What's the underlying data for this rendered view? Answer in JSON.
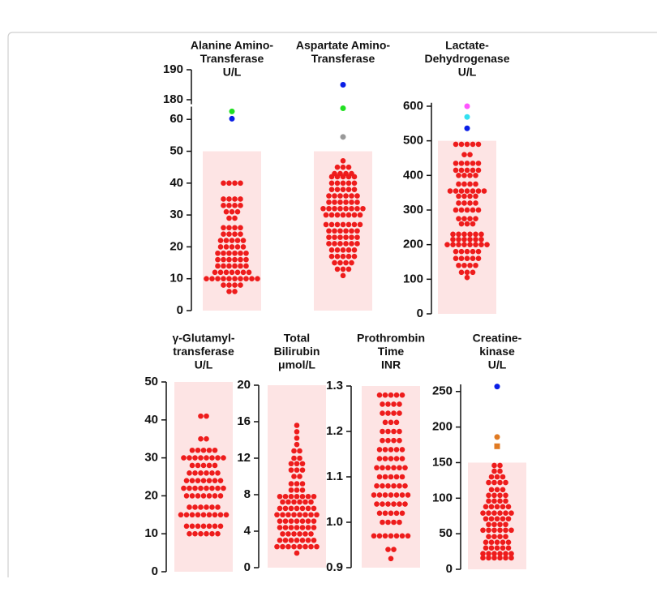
{
  "chart_data": [
    {
      "type": "swarm",
      "ylim": [
        0,
        64
      ],
      "yticks": [
        0,
        10,
        20,
        30,
        40,
        50,
        60
      ],
      "ylim_upper": [
        178.5,
        190
      ],
      "yticks_upper": [
        180,
        190
      ],
      "groups": [
        {
          "title": [
            "Alanine Amino-",
            "Transferase",
            "U/L"
          ],
          "color": "#ee1c1c",
          "reference_range": [
            0,
            50
          ],
          "values": [
            6,
            6,
            8,
            8,
            8,
            8,
            10,
            10,
            10,
            10,
            10,
            10,
            10,
            10,
            10,
            10,
            12,
            12,
            12,
            12,
            12,
            12,
            12,
            14,
            14,
            14,
            14,
            14,
            14,
            16,
            16,
            16,
            16,
            16,
            16,
            18,
            18,
            18,
            18,
            18,
            18,
            20,
            20,
            20,
            20,
            20,
            22,
            22,
            22,
            22,
            22,
            24,
            24,
            24,
            24,
            26,
            26,
            26,
            26,
            29,
            29,
            31,
            31,
            31,
            33,
            33,
            33,
            33,
            35,
            35,
            35,
            35,
            40,
            40,
            40,
            40
          ],
          "outliers": [
            {
              "value": 62.5,
              "color": "#22e022",
              "marker": "circle"
            },
            {
              "value": 60.2,
              "color": "#0a1ee6",
              "marker": "circle"
            }
          ]
        },
        {
          "title": [
            "Aspartate Amino-",
            "Transferase"
          ],
          "color": "#ee1c1c",
          "reference_range": [
            0,
            50
          ],
          "values": [
            11,
            13,
            13,
            13,
            15,
            15,
            15,
            15,
            17,
            17,
            17,
            17,
            17,
            19,
            19,
            19,
            19,
            19,
            21,
            21,
            21,
            21,
            21,
            21,
            23,
            23,
            23,
            23,
            23,
            23,
            25,
            25,
            25,
            25,
            25,
            25,
            27,
            27,
            27,
            27,
            27,
            27,
            27,
            30,
            30,
            30,
            30,
            30,
            30,
            30,
            32,
            32,
            32,
            32,
            32,
            32,
            32,
            32,
            34,
            34,
            34,
            34,
            34,
            34,
            36,
            36,
            36,
            36,
            36,
            36,
            38,
            38,
            38,
            38,
            38,
            40,
            40,
            40,
            40,
            40,
            42,
            42,
            42,
            42,
            42,
            43,
            43,
            43,
            43,
            45,
            45,
            45,
            47
          ],
          "outliers": [
            {
              "value": 185,
              "color": "#0a1ee6",
              "marker": "circle"
            },
            {
              "value": 63.5,
              "color": "#22e022",
              "marker": "circle"
            },
            {
              "value": 54.5,
              "color": "#999999",
              "marker": "circle"
            }
          ]
        }
      ]
    },
    {
      "type": "swarm",
      "ylim": [
        0,
        610
      ],
      "yticks": [
        0,
        100,
        200,
        300,
        400,
        500,
        600
      ],
      "groups": [
        {
          "title": [
            "Lactate-",
            "Dehydrogenase",
            "U/L"
          ],
          "color": "#ee1c1c",
          "reference_range": [
            0,
            500
          ],
          "values": [
            105,
            120,
            120,
            120,
            140,
            140,
            140,
            140,
            160,
            160,
            160,
            160,
            160,
            180,
            180,
            180,
            180,
            180,
            200,
            200,
            200,
            200,
            200,
            200,
            200,
            200,
            215,
            215,
            215,
            215,
            215,
            215,
            230,
            230,
            230,
            230,
            230,
            230,
            260,
            260,
            260,
            275,
            275,
            275,
            275,
            300,
            300,
            300,
            300,
            300,
            320,
            320,
            320,
            320,
            340,
            340,
            340,
            340,
            355,
            355,
            355,
            355,
            355,
            355,
            355,
            375,
            375,
            375,
            375,
            400,
            400,
            400,
            400,
            415,
            415,
            415,
            415,
            415,
            435,
            435,
            435,
            435,
            435,
            460,
            460,
            490,
            490,
            490,
            490,
            490
          ],
          "outliers": [
            {
              "value": 600,
              "color": "#ff55ff",
              "marker": "circle"
            },
            {
              "value": 569,
              "color": "#33e0f0",
              "marker": "circle"
            },
            {
              "value": 536,
              "color": "#0a1ee6",
              "marker": "circle"
            }
          ]
        }
      ]
    },
    {
      "type": "swarm",
      "ylim": [
        0,
        50
      ],
      "yticks": [
        0,
        10,
        20,
        30,
        40,
        50
      ],
      "groups": [
        {
          "title": [
            "γ-Glutamyl-",
            "transferase",
            "U/L"
          ],
          "color": "#ee1c1c",
          "reference_range": [
            0,
            50
          ],
          "values": [
            10,
            10,
            10,
            10,
            10,
            10,
            12,
            12,
            12,
            12,
            12,
            12,
            12,
            15,
            15,
            15,
            15,
            15,
            15,
            15,
            15,
            15,
            17,
            17,
            17,
            17,
            17,
            17,
            20,
            20,
            20,
            20,
            20,
            20,
            20,
            22,
            22,
            22,
            22,
            22,
            22,
            22,
            22,
            24,
            24,
            24,
            24,
            24,
            24,
            24,
            26,
            26,
            26,
            26,
            26,
            26,
            28,
            28,
            28,
            28,
            28,
            30,
            30,
            30,
            30,
            30,
            30,
            30,
            30,
            32,
            32,
            32,
            32,
            32,
            35,
            35,
            41,
            41
          ],
          "outliers": []
        }
      ]
    },
    {
      "type": "swarm",
      "ylim": [
        0,
        20
      ],
      "yticks": [
        0,
        4,
        8,
        12,
        16,
        20
      ],
      "groups": [
        {
          "title": [
            "Total",
            "Bilirubin",
            "μmol/L"
          ],
          "color": "#ee1c1c",
          "reference_range": [
            0,
            20
          ],
          "values": [
            1.6,
            2.3,
            2.3,
            2.3,
            2.3,
            2.3,
            2.3,
            2.3,
            2.3,
            3,
            3,
            3,
            3,
            3,
            3,
            3,
            3.7,
            3.7,
            3.7,
            3.7,
            3.7,
            3.7,
            4.4,
            4.4,
            4.4,
            4.4,
            4.4,
            4.4,
            4.4,
            5.1,
            5.1,
            5.1,
            5.1,
            5.1,
            5.1,
            5.1,
            5.8,
            5.8,
            5.8,
            5.8,
            5.8,
            5.8,
            5.8,
            5.8,
            6.5,
            6.5,
            6.5,
            6.5,
            6.5,
            6.5,
            6.5,
            7.2,
            7.2,
            7.2,
            7.2,
            7.2,
            7.2,
            7.8,
            7.8,
            7.8,
            7.8,
            7.8,
            7.8,
            7.8,
            8.5,
            8.5,
            8.5,
            9.2,
            9.2,
            9.2,
            10,
            10,
            10.7,
            10.7,
            10.7,
            11.4,
            11.4,
            11.4,
            12,
            12,
            12.8,
            12.8,
            13.5,
            14.2,
            14.9,
            15.6
          ],
          "outliers": []
        }
      ]
    },
    {
      "type": "swarm",
      "ylim": [
        0.9,
        1.3
      ],
      "yticks": [
        0.9,
        {
          "value": 1,
          "label": "1.0"
        },
        1.1,
        1.2,
        1.3
      ],
      "groups": [
        {
          "title": [
            "Prothrombin",
            "Time",
            "INR"
          ],
          "color": "#ee1c1c",
          "reference_range": [
            0.9,
            1.3
          ],
          "values": [
            0.92,
            0.94,
            0.94,
            0.97,
            0.97,
            0.97,
            0.97,
            0.97,
            0.97,
            0.97,
            1,
            1,
            1,
            1,
            1.02,
            1.02,
            1.02,
            1.02,
            1.02,
            1.04,
            1.04,
            1.04,
            1.04,
            1.04,
            1.04,
            1.06,
            1.06,
            1.06,
            1.06,
            1.06,
            1.06,
            1.06,
            1.08,
            1.08,
            1.08,
            1.08,
            1.08,
            1.08,
            1.1,
            1.1,
            1.1,
            1.1,
            1.1,
            1.12,
            1.12,
            1.12,
            1.12,
            1.12,
            1.12,
            1.14,
            1.14,
            1.14,
            1.14,
            1.14,
            1.16,
            1.16,
            1.16,
            1.16,
            1.16,
            1.18,
            1.18,
            1.18,
            1.18,
            1.2,
            1.2,
            1.2,
            1.2,
            1.22,
            1.22,
            1.22,
            1.24,
            1.24,
            1.24,
            1.24,
            1.26,
            1.26,
            1.26,
            1.26,
            1.28,
            1.28,
            1.28,
            1.28,
            1.28
          ],
          "outliers": []
        }
      ]
    },
    {
      "type": "swarm",
      "ylim": [
        0,
        260
      ],
      "yticks": [
        0,
        50,
        100,
        150,
        200,
        250
      ],
      "groups": [
        {
          "title": [
            "Creatine-",
            "kinase",
            "U/L"
          ],
          "color": "#ee1c1c",
          "reference_range": [
            0,
            150
          ],
          "values": [
            16,
            16,
            16,
            16,
            16,
            16,
            22,
            22,
            22,
            22,
            22,
            22,
            30,
            30,
            30,
            30,
            30,
            38,
            38,
            38,
            38,
            38,
            46,
            46,
            46,
            46,
            55,
            55,
            55,
            55,
            55,
            55,
            63,
            63,
            63,
            63,
            71,
            71,
            71,
            71,
            71,
            79,
            79,
            79,
            79,
            79,
            79,
            88,
            88,
            88,
            88,
            88,
            96,
            96,
            96,
            96,
            104,
            104,
            104,
            104,
            112,
            112,
            112,
            122,
            122,
            122,
            122,
            130,
            130,
            130,
            138,
            138,
            146,
            146
          ],
          "outliers": [
            {
              "value": 257,
              "color": "#0a1ee6",
              "marker": "circle"
            },
            {
              "value": 186,
              "color": "#e07a22",
              "marker": "circle"
            },
            {
              "value": 173,
              "color": "#e07a22",
              "marker": "square"
            }
          ]
        }
      ]
    }
  ]
}
